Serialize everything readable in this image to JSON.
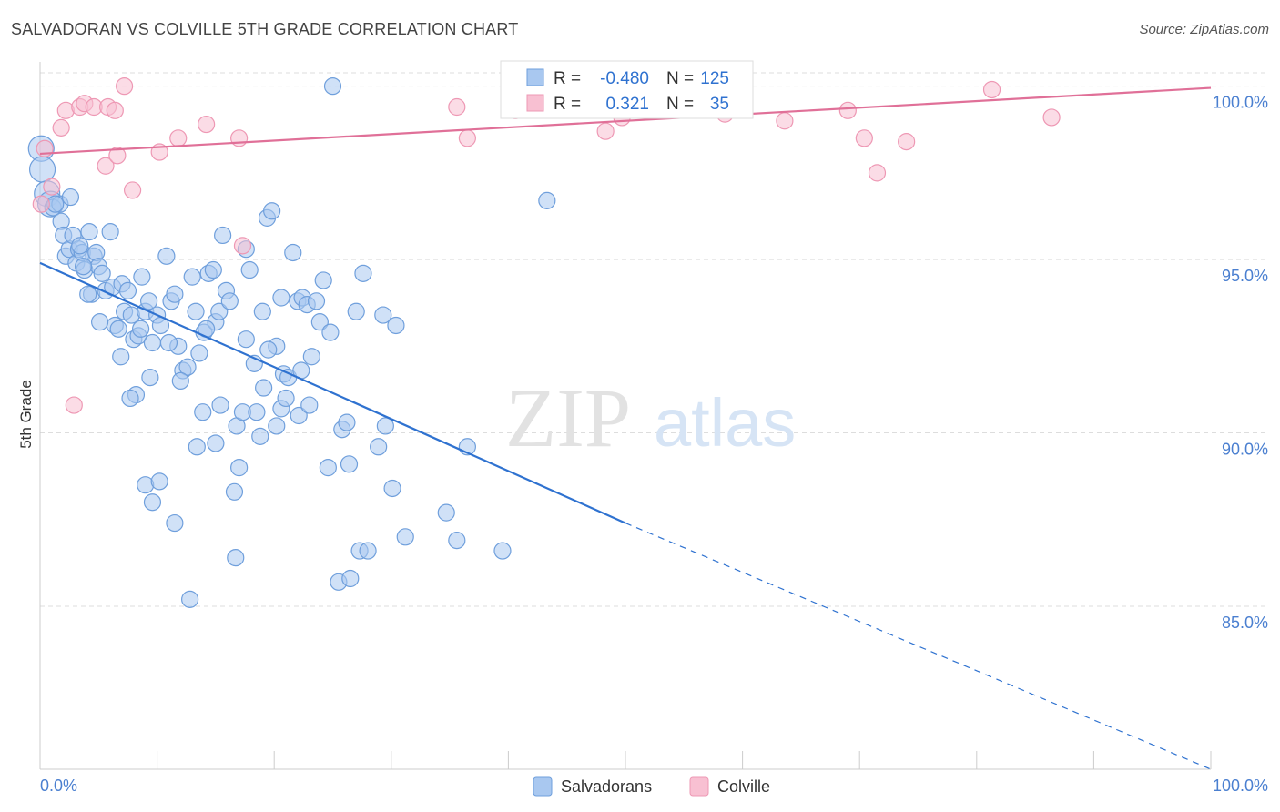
{
  "title": "SALVADORAN VS COLVILLE 5TH GRADE CORRELATION CHART",
  "source": "Source: ZipAtlas.com",
  "watermark": {
    "zip": "ZIP",
    "atlas": "atlas"
  },
  "colors": {
    "blue_fill": "#a9c8f0",
    "blue_stroke": "#6f9fdc",
    "blue_line": "#2f72d0",
    "pink_fill": "#f8c0d2",
    "pink_stroke": "#ee98b4",
    "pink_line": "#e07098",
    "axis_text": "#4a7fd0",
    "grid": "#dddddd"
  },
  "legend": {
    "rows": [
      {
        "r_label": "R =",
        "r_value": "-0.480",
        "n_label": "N =",
        "n_value": "125"
      },
      {
        "r_label": "R =",
        "r_value": "0.321",
        "n_label": "N =",
        "n_value": "35"
      }
    ]
  },
  "bottom_legend": [
    "Salvadorans",
    "Colville"
  ],
  "chart_data": {
    "type": "scatter",
    "xlabel": "",
    "ylabel": "5th Grade",
    "xlim": [
      0,
      100
    ],
    "ylim": [
      80.3,
      100.7
    ],
    "x_tick_labels": [
      "0.0%",
      "100.0%"
    ],
    "y_ticks": [
      85,
      90,
      95,
      100
    ],
    "y_tick_labels": [
      "85.0%",
      "90.0%",
      "95.0%",
      "100.0%"
    ],
    "grid": true,
    "series": [
      {
        "name": "Salvadorans",
        "r": -0.48,
        "n": 125,
        "trend": {
          "x": [
            0,
            50
          ],
          "y": [
            94.9,
            87.4
          ],
          "dashed_to": [
            100,
            80.3
          ]
        },
        "points": [
          [
            0.1,
            98.2
          ],
          [
            0.2,
            97.6
          ],
          [
            0.6,
            96.9
          ],
          [
            0.9,
            96.6
          ],
          [
            1.1,
            96.5
          ],
          [
            1.7,
            96.6
          ],
          [
            1.8,
            96.1
          ],
          [
            2.0,
            95.7
          ],
          [
            2.2,
            95.1
          ],
          [
            2.5,
            95.3
          ],
          [
            2.8,
            95.7
          ],
          [
            3.1,
            94.9
          ],
          [
            3.3,
            95.3
          ],
          [
            3.6,
            95.2
          ],
          [
            3.8,
            94.7
          ],
          [
            4.2,
            95.8
          ],
          [
            4.4,
            94.0
          ],
          [
            4.6,
            95.1
          ],
          [
            4.8,
            95.2
          ],
          [
            5.0,
            94.8
          ],
          [
            5.3,
            94.6
          ],
          [
            5.6,
            94.1
          ],
          [
            6.0,
            95.8
          ],
          [
            6.2,
            94.2
          ],
          [
            6.4,
            93.1
          ],
          [
            6.7,
            93.0
          ],
          [
            7.0,
            94.3
          ],
          [
            7.2,
            93.5
          ],
          [
            7.8,
            93.4
          ],
          [
            8.0,
            92.7
          ],
          [
            8.4,
            92.8
          ],
          [
            8.7,
            94.5
          ],
          [
            9.0,
            93.5
          ],
          [
            9.3,
            93.8
          ],
          [
            9.6,
            92.6
          ],
          [
            10.0,
            93.4
          ],
          [
            10.3,
            93.1
          ],
          [
            10.8,
            95.1
          ],
          [
            11.2,
            93.8
          ],
          [
            11.5,
            94.0
          ],
          [
            11.8,
            92.5
          ],
          [
            12.2,
            91.8
          ],
          [
            12.6,
            91.9
          ],
          [
            13.0,
            94.5
          ],
          [
            13.3,
            93.5
          ],
          [
            13.6,
            92.3
          ],
          [
            14.0,
            92.9
          ],
          [
            14.4,
            94.6
          ],
          [
            14.8,
            94.7
          ],
          [
            15.0,
            93.2
          ],
          [
            15.3,
            93.5
          ],
          [
            15.6,
            95.7
          ],
          [
            15.9,
            94.1
          ],
          [
            16.2,
            93.8
          ],
          [
            16.8,
            90.2
          ],
          [
            17.3,
            90.6
          ],
          [
            17.6,
            95.3
          ],
          [
            17.9,
            94.7
          ],
          [
            18.5,
            90.6
          ],
          [
            19.0,
            93.5
          ],
          [
            19.4,
            96.2
          ],
          [
            19.8,
            96.4
          ],
          [
            20.2,
            92.5
          ],
          [
            20.6,
            93.9
          ],
          [
            20.8,
            91.7
          ],
          [
            21.2,
            91.6
          ],
          [
            21.6,
            95.2
          ],
          [
            22.0,
            93.8
          ],
          [
            22.4,
            93.9
          ],
          [
            22.8,
            93.7
          ],
          [
            23.2,
            92.2
          ],
          [
            23.6,
            93.8
          ],
          [
            23.9,
            93.2
          ],
          [
            24.2,
            94.4
          ],
          [
            25.0,
            100.0
          ],
          [
            25.5,
            85.7
          ],
          [
            25.8,
            90.1
          ],
          [
            26.2,
            90.3
          ],
          [
            26.4,
            89.1
          ],
          [
            27.3,
            86.6
          ],
          [
            27.6,
            94.6
          ],
          [
            28.0,
            86.6
          ],
          [
            28.9,
            89.6
          ],
          [
            29.3,
            93.4
          ],
          [
            30.4,
            93.1
          ],
          [
            31.2,
            87.0
          ],
          [
            34.7,
            87.7
          ],
          [
            35.6,
            86.9
          ],
          [
            36.5,
            89.6
          ],
          [
            39.5,
            86.6
          ],
          [
            8.2,
            91.1
          ],
          [
            7.7,
            91.0
          ],
          [
            9.0,
            88.5
          ],
          [
            9.6,
            88.0
          ],
          [
            10.2,
            88.6
          ],
          [
            11.5,
            87.4
          ],
          [
            12.8,
            85.2
          ],
          [
            13.4,
            89.6
          ],
          [
            15.0,
            89.7
          ],
          [
            16.6,
            88.3
          ],
          [
            17.0,
            89.0
          ],
          [
            18.3,
            92.0
          ],
          [
            19.1,
            91.3
          ],
          [
            20.6,
            90.7
          ],
          [
            20.2,
            90.2
          ],
          [
            22.1,
            90.5
          ],
          [
            23.0,
            90.8
          ],
          [
            24.6,
            89.0
          ],
          [
            29.5,
            90.2
          ],
          [
            30.1,
            88.4
          ],
          [
            13.9,
            90.6
          ],
          [
            15.4,
            90.8
          ],
          [
            16.7,
            86.4
          ],
          [
            18.8,
            89.9
          ],
          [
            21.0,
            91.0
          ],
          [
            26.5,
            85.8
          ],
          [
            12.0,
            91.5
          ],
          [
            9.4,
            91.6
          ],
          [
            11.0,
            92.6
          ],
          [
            14.2,
            93.0
          ],
          [
            17.6,
            92.7
          ],
          [
            19.5,
            92.4
          ],
          [
            22.3,
            91.8
          ],
          [
            24.8,
            92.9
          ],
          [
            27.0,
            93.5
          ],
          [
            6.9,
            92.2
          ],
          [
            5.1,
            93.2
          ],
          [
            4.1,
            94.0
          ],
          [
            3.4,
            95.4
          ],
          [
            2.6,
            96.8
          ],
          [
            1.3,
            96.6
          ],
          [
            3.7,
            94.8
          ],
          [
            8.6,
            93.0
          ],
          [
            7.5,
            94.1
          ],
          [
            43.3,
            96.7
          ]
        ]
      },
      {
        "name": "Colville",
        "r": 0.321,
        "n": 35,
        "trend": {
          "x": [
            0,
            100
          ],
          "y": [
            98.05,
            99.95
          ]
        },
        "points": [
          [
            0.1,
            96.6
          ],
          [
            0.4,
            98.2
          ],
          [
            1.0,
            97.1
          ],
          [
            1.8,
            98.8
          ],
          [
            2.2,
            99.3
          ],
          [
            2.9,
            90.8
          ],
          [
            3.4,
            99.4
          ],
          [
            3.8,
            99.5
          ],
          [
            4.6,
            99.4
          ],
          [
            5.6,
            97.7
          ],
          [
            5.8,
            99.4
          ],
          [
            6.4,
            99.3
          ],
          [
            6.6,
            98.0
          ],
          [
            7.2,
            100.0
          ],
          [
            7.9,
            97.0
          ],
          [
            10.2,
            98.1
          ],
          [
            11.8,
            98.5
          ],
          [
            14.2,
            98.9
          ],
          [
            17.0,
            98.5
          ],
          [
            17.3,
            95.4
          ],
          [
            35.6,
            99.4
          ],
          [
            36.5,
            98.5
          ],
          [
            40.6,
            99.3
          ],
          [
            47.8,
            100.0
          ],
          [
            48.3,
            98.7
          ],
          [
            49.7,
            99.1
          ],
          [
            53.5,
            100.0
          ],
          [
            58.5,
            99.2
          ],
          [
            63.6,
            99.0
          ],
          [
            69.0,
            99.3
          ],
          [
            70.4,
            98.5
          ],
          [
            71.5,
            97.5
          ],
          [
            74.0,
            98.4
          ],
          [
            81.3,
            99.9
          ],
          [
            86.4,
            99.1
          ]
        ]
      }
    ]
  }
}
